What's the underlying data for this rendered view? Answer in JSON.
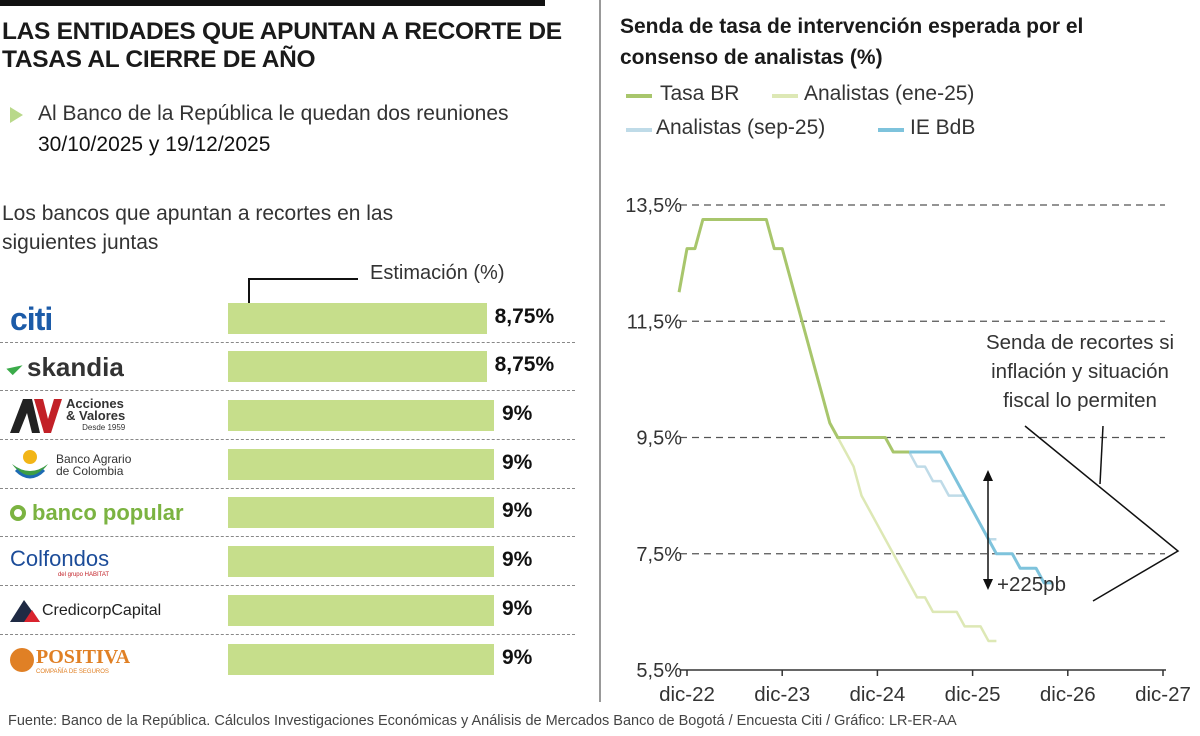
{
  "left": {
    "headline": "LAS ENTIDADES QUE APUNTAN A RECORTE DE TASAS AL CIERRE DE AÑO",
    "bullet_text_1": "Al Banco de la República le quedan dos reuniones ",
    "bullet_dates": "30/10/2025 y 19/12/2025",
    "subtitle": "Los bancos que apuntan a recortes en las siguientes juntas",
    "estimation_label": "Estimación (%)",
    "banks": [
      {
        "logo": "citi",
        "value": 8.75,
        "label": "8,75%"
      },
      {
        "logo": "skandia",
        "value": 8.75,
        "label": "8,75%"
      },
      {
        "logo": "Acciones & Valores",
        "value": 9,
        "label": "9%"
      },
      {
        "logo": "Banco Agrario de Colombia",
        "value": 9,
        "label": "9%"
      },
      {
        "logo": "banco popular",
        "value": 9,
        "label": "9%"
      },
      {
        "logo": "Colfondos",
        "value": 9,
        "label": "9%"
      },
      {
        "logo": "CredicorpCapital",
        "value": 9,
        "label": "9%"
      },
      {
        "logo": "Positiva",
        "value": 9,
        "label": "9%"
      }
    ],
    "logo_text": {
      "citi": "citi",
      "skandia": "skandia",
      "av_1": "Acciones",
      "av_2": "& Valores",
      "av_3": "Desde 1959",
      "agrario_1": "Banco Agrario",
      "agrario_2": "de Colombia",
      "popular": "banco popular",
      "colfondos": "Colfondos",
      "colfondos_sub": "del grupo HABITAT",
      "credicorp": "CredicorpCapital",
      "positiva": "POSITIVA",
      "positiva_sub": "COMPAÑÍA DE SEGUROS"
    }
  },
  "chart_data": {
    "type": "line",
    "title": "Senda de tasa de intervención esperada por el consenso de analistas (%)",
    "ylabel": "",
    "xlabel": "",
    "ylim": [
      5.5,
      13.5
    ],
    "yticks": [
      5.5,
      7.5,
      9.5,
      11.5,
      13.5
    ],
    "ytick_labels": [
      "5,5%",
      "7,5%",
      "9,5%",
      "11,5%",
      "13,5%"
    ],
    "xticks": [
      "dic-22",
      "dic-23",
      "dic-24",
      "dic-25",
      "dic-26",
      "dic-27"
    ],
    "x_unit_note": "months since dic-22",
    "legend": [
      "Tasa BR",
      "Analistas (ene-25)",
      "Analistas (sep-25)",
      "IE BdB"
    ],
    "colors": {
      "tasa_br": "#a8c66c",
      "ene25": "#dde8b5",
      "sep25": "#bfdbe8",
      "ie_bdb": "#7ec3dc",
      "axis": "#333333",
      "grid": "#555555"
    },
    "series": [
      {
        "name": "Tasa BR",
        "key": "tasa_br",
        "points": [
          [
            -1,
            12.0
          ],
          [
            0,
            12.75
          ],
          [
            1,
            12.75
          ],
          [
            2,
            13.25
          ],
          [
            3,
            13.25
          ],
          [
            10,
            13.25
          ],
          [
            11,
            12.75
          ],
          [
            12,
            12.75
          ],
          [
            13,
            12.25
          ],
          [
            14,
            11.75
          ],
          [
            15,
            11.25
          ],
          [
            16,
            10.75
          ],
          [
            17,
            10.25
          ],
          [
            18,
            9.75
          ],
          [
            19,
            9.5
          ],
          [
            25,
            9.5
          ],
          [
            26,
            9.25
          ],
          [
            28,
            9.25
          ]
        ]
      },
      {
        "name": "Analistas (ene-25)",
        "key": "ene25",
        "points": [
          [
            19,
            9.5
          ],
          [
            20,
            9.25
          ],
          [
            21,
            9.0
          ],
          [
            22,
            8.5
          ],
          [
            23,
            8.25
          ],
          [
            24,
            8.0
          ],
          [
            25,
            7.75
          ],
          [
            26,
            7.5
          ],
          [
            27,
            7.25
          ],
          [
            28,
            7.0
          ],
          [
            29,
            6.75
          ],
          [
            30,
            6.75
          ],
          [
            31,
            6.5
          ],
          [
            34,
            6.5
          ],
          [
            35,
            6.25
          ],
          [
            37,
            6.25
          ],
          [
            38,
            6.0
          ],
          [
            39,
            6.0
          ]
        ]
      },
      {
        "name": "Analistas (sep-25)",
        "key": "sep25",
        "points": [
          [
            28,
            9.25
          ],
          [
            29,
            9.0
          ],
          [
            30,
            9.0
          ],
          [
            31,
            8.75
          ],
          [
            32,
            8.75
          ],
          [
            33,
            8.5
          ],
          [
            35,
            8.5
          ],
          [
            36,
            8.25
          ],
          [
            37,
            8.0
          ],
          [
            38,
            7.75
          ],
          [
            39,
            7.75
          ]
        ]
      },
      {
        "name": "IE BdB",
        "key": "ie_bdb",
        "points": [
          [
            28,
            9.25
          ],
          [
            32,
            9.25
          ],
          [
            33,
            9.0
          ],
          [
            34,
            8.75
          ],
          [
            35,
            8.5
          ],
          [
            36,
            8.25
          ],
          [
            37,
            8.0
          ],
          [
            38,
            7.75
          ],
          [
            39,
            7.5
          ],
          [
            41,
            7.5
          ],
          [
            42,
            7.25
          ],
          [
            44,
            7.25
          ],
          [
            45,
            7.0
          ],
          [
            46,
            7.0
          ]
        ]
      }
    ],
    "annotations": {
      "senda": "Senda de recortes si inflación y situación fiscal lo permiten",
      "diff": "+225pb"
    }
  },
  "source": "Fuente: Banco de la República. Cálculos Investigaciones Económicas y Análisis de Mercados Banco de Bogotá / Encuesta Citi / Gráfico: LR-ER-AA"
}
